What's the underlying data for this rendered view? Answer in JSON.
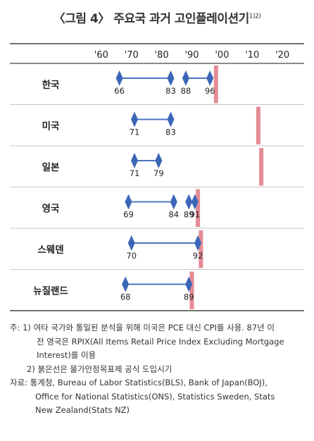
{
  "title": "〈그림 4〉 주요국 과거 고인플레이션기",
  "title_note": "1)2)",
  "chart_data": {
    "type": "range",
    "x_ticks": [
      "'60",
      "'70",
      "'80",
      "'90",
      "'00",
      "'10",
      "'20"
    ],
    "xlim": [
      1957,
      2023
    ],
    "countries": [
      {
        "name": "한국",
        "episodes": [
          {
            "start": 1966,
            "end": 1983
          },
          {
            "start": 1988,
            "end": 1996
          }
        ],
        "labels": [
          "66",
          "83",
          "88",
          "96"
        ],
        "target_year": 1998
      },
      {
        "name": "미국",
        "episodes": [
          {
            "start": 1971,
            "end": 1983
          }
        ],
        "labels": [
          "71",
          "83"
        ],
        "target_year": 2012
      },
      {
        "name": "일본",
        "episodes": [
          {
            "start": 1971,
            "end": 1979
          }
        ],
        "labels": [
          "71",
          "79"
        ],
        "target_year": 2013
      },
      {
        "name": "영국",
        "episodes": [
          {
            "start": 1969,
            "end": 1984
          },
          {
            "start": 1989,
            "end": 1991
          }
        ],
        "labels": [
          "69",
          "84",
          "89",
          "91"
        ],
        "target_year": 1992
      },
      {
        "name": "스웨덴",
        "episodes": [
          {
            "start": 1970,
            "end": 1992
          }
        ],
        "labels": [
          "70",
          "92"
        ],
        "target_year": 1993
      },
      {
        "name": "뉴질랜드",
        "episodes": [
          {
            "start": 1968,
            "end": 1989
          }
        ],
        "labels": [
          "68",
          "89"
        ],
        "target_year": 1990
      }
    ]
  },
  "colors": {
    "range_line": "#4a74c0",
    "diamond": "#3a66b8",
    "target_line": "#e58b95",
    "axis_border": "#444444",
    "row_divider": "#c8c8c8"
  },
  "notes": {
    "n1_line1": "주: 1) 여타 국가와 통일된 분석을 위해 미국은 PCE 대신 CPI를 사용. 87년 이",
    "n1_line2": "전 영국은 RPIX(All Items Retail Price Index Excluding Mortgage",
    "n1_line3": "Interest)를 이용",
    "n2": "2) 붉은선은 물가안정목표제 공식 도입시기",
    "source_line1": "자료: 통계청, Bureau of Labor Statistics(BLS), Bank of Japan(BOJ),",
    "source_line2": "Office for National Statistics(ONS), Statistics Sweden, Stats",
    "source_line3": "New Zealand(Stats NZ)"
  }
}
